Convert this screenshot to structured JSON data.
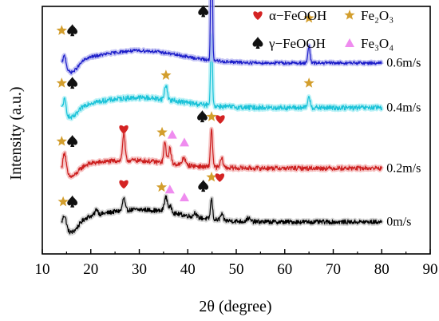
{
  "chart_data": {
    "type": "line",
    "title": "",
    "xlabel": "2θ (degree)",
    "ylabel": "Intensity (a.u.)",
    "xlim": [
      10,
      90
    ],
    "xticks": [
      10,
      20,
      30,
      40,
      50,
      60,
      70,
      80,
      90
    ],
    "x_range": [
      14,
      80
    ],
    "yticks": "none",
    "grid": false,
    "legend_position": "top-right",
    "legend": [
      {
        "key": "alpha",
        "symbol": "heart",
        "color": "#d42323",
        "label": "α−FeOOH"
      },
      {
        "key": "fe2o3",
        "symbol": "star",
        "color": "#d39e2d",
        "label": "Fe₂O₃"
      },
      {
        "key": "gamma",
        "symbol": "spade",
        "color": "#111111",
        "label": "γ−FeOOH"
      },
      {
        "key": "fe3o4",
        "symbol": "triangle",
        "color": "#ef8cef",
        "label": "Fe₃O₄"
      }
    ],
    "series": [
      {
        "name": "0m/s",
        "color": "#000000",
        "band_color": "#cfcfcf",
        "baseline": 1.0,
        "noise": 0.1,
        "peaks": [
          [
            14.6,
            0.55,
            0.5
          ],
          [
            21.2,
            0.25,
            0.4
          ],
          [
            26.8,
            0.55,
            0.35
          ],
          [
            35.5,
            0.65,
            0.5
          ],
          [
            36.5,
            0.25,
            0.4
          ],
          [
            41.5,
            0.2,
            0.4
          ],
          [
            44.9,
            0.9,
            0.3
          ],
          [
            47.0,
            0.25,
            0.4
          ],
          [
            52.5,
            0.15,
            0.5
          ]
        ],
        "hump": [
          [
            30,
            0.55,
            12
          ],
          [
            16,
            -0.6,
            2.0
          ]
        ],
        "markers": [
          {
            "x": 14.3,
            "symbol": "star",
            "dy": 0.9
          },
          {
            "x": 16.2,
            "symbol": "spade",
            "dy": 0.9
          },
          {
            "x": 26.8,
            "symbol": "heart",
            "dy": 1.7
          },
          {
            "x": 34.6,
            "symbol": "star",
            "dy": 1.55
          },
          {
            "x": 36.3,
            "symbol": "triangle",
            "dy": 1.45
          },
          {
            "x": 39.3,
            "symbol": "triangle",
            "dy": 1.1
          },
          {
            "x": 43.2,
            "symbol": "spade",
            "dy": 1.6
          },
          {
            "x": 44.9,
            "symbol": "star",
            "dy": 2.0
          },
          {
            "x": 46.6,
            "symbol": "heart",
            "dy": 2.0
          }
        ]
      },
      {
        "name": "0.2m/s",
        "color": "#cc1f1f",
        "band_color": "#f5b8b8",
        "baseline": 3.4,
        "noise": 0.1,
        "peaks": [
          [
            14.6,
            0.9,
            0.45
          ],
          [
            26.8,
            1.2,
            0.35
          ],
          [
            35.3,
            0.9,
            0.35
          ],
          [
            36.3,
            0.7,
            0.35
          ],
          [
            39.2,
            0.35,
            0.4
          ],
          [
            44.9,
            1.7,
            0.3
          ],
          [
            47.0,
            0.4,
            0.4
          ]
        ],
        "hump": [
          [
            28,
            0.35,
            12
          ],
          [
            16,
            -0.5,
            2.0
          ]
        ],
        "markers": [
          {
            "x": 14.0,
            "symbol": "star",
            "dy": 1.2
          },
          {
            "x": 16.2,
            "symbol": "spade",
            "dy": 1.2
          },
          {
            "x": 26.8,
            "symbol": "heart",
            "dy": 1.75
          },
          {
            "x": 34.7,
            "symbol": "star",
            "dy": 1.6
          },
          {
            "x": 36.8,
            "symbol": "triangle",
            "dy": 1.5
          },
          {
            "x": 39.3,
            "symbol": "triangle",
            "dy": 1.15
          },
          {
            "x": 43.0,
            "symbol": "spade",
            "dy": 2.3
          },
          {
            "x": 44.9,
            "symbol": "star",
            "dy": 2.3
          },
          {
            "x": 46.7,
            "symbol": "heart",
            "dy": 2.2
          }
        ]
      },
      {
        "name": "0.4m/s",
        "color": "#19c2d8",
        "band_color": "#aeeef5",
        "baseline": 6.1,
        "noise": 0.11,
        "peaks": [
          [
            14.6,
            0.6,
            0.45
          ],
          [
            35.5,
            0.65,
            0.4
          ],
          [
            44.9,
            3.3,
            0.25
          ],
          [
            65.0,
            0.45,
            0.4
          ]
        ],
        "hump": [
          [
            30,
            0.45,
            12
          ],
          [
            16,
            -0.55,
            2.0
          ]
        ],
        "markers": [
          {
            "x": 14.0,
            "symbol": "star",
            "dy": 1.1
          },
          {
            "x": 16.2,
            "symbol": "spade",
            "dy": 1.1
          },
          {
            "x": 35.5,
            "symbol": "star",
            "dy": 1.45
          },
          {
            "x": 65.0,
            "symbol": "star",
            "dy": 1.1
          }
        ]
      },
      {
        "name": "0.6m/s",
        "color": "#1d1ec9",
        "band_color": "#b8b8f2",
        "baseline": 8.1,
        "noise": 0.07,
        "peaks": [
          [
            14.6,
            0.55,
            0.45
          ],
          [
            44.9,
            7.9,
            0.22
          ],
          [
            65.0,
            0.75,
            0.3
          ]
        ],
        "hump": [
          [
            30,
            0.55,
            12
          ],
          [
            16,
            -0.55,
            2.0
          ]
        ],
        "markers": [
          {
            "x": 14.0,
            "symbol": "star",
            "dy": 1.45
          },
          {
            "x": 16.2,
            "symbol": "spade",
            "dy": 1.45
          },
          {
            "x": 43.2,
            "symbol": "spade",
            "dy": 2.3
          },
          {
            "x": 44.9,
            "symbol": "spade",
            "dy": 8.9
          },
          {
            "x": 65.0,
            "symbol": "star",
            "dy": 2.0
          }
        ]
      }
    ],
    "labels": {
      "0m/s": "0m/s",
      "0.2m/s": "0.2m/s",
      "0.4m/s": "0.4m/s",
      "0.6m/s": "0.6m/s"
    }
  }
}
